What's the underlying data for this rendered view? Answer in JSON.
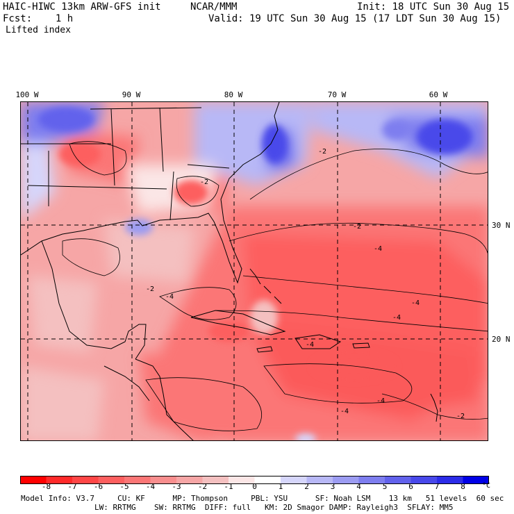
{
  "header": {
    "model": "HAIC-HIWC 13km ARW-GFS init",
    "org": "NCAR/MMM",
    "init": "Init: 18 UTC Sun 30 Aug 15",
    "fcst": "Fcst:    1 h",
    "valid": "Valid: 19 UTC Sun 30 Aug 15 (17 LDT Sun 30 Aug 15)",
    "field": "Lifted index"
  },
  "longitudes": [
    "100 W",
    "90 W",
    "80 W",
    "70 W",
    "60 W"
  ],
  "latitudes": [
    "30 N",
    "20 N"
  ],
  "contour_labels": [
    "-2",
    "-4"
  ],
  "colorbar": {
    "ticks": [
      "-8",
      "-7",
      "-6",
      "-5",
      "-4",
      "-3",
      "-2",
      "-1",
      "0",
      "1",
      "2",
      "3",
      "4",
      "5",
      "6",
      "7",
      "8"
    ],
    "unit": "°C",
    "colors": [
      "#ff0000",
      "#ff2a2a",
      "#ff4646",
      "#fd5f5f",
      "#fb7676",
      "#f88e8e",
      "#f6a6a6",
      "#f4c0c0",
      "#fbe6e6",
      "#ffffff",
      "#d6d6fb",
      "#b8b8f6",
      "#9c9cf2",
      "#7e7eef",
      "#6262ec",
      "#4848ea",
      "#2c2ce8",
      "#0000e6"
    ]
  },
  "footer": {
    "line1": "Model Info: V3.7     CU: KF      MP: Thompson     PBL: YSU      SF: Noah LSM    13 km   51 levels  60 sec",
    "line2": "                LW: RRTMG    SW: RRTMG  DIFF: full   KM: 2D Smagor DAMP: Rayleigh3  SFLAY: MM5"
  }
}
